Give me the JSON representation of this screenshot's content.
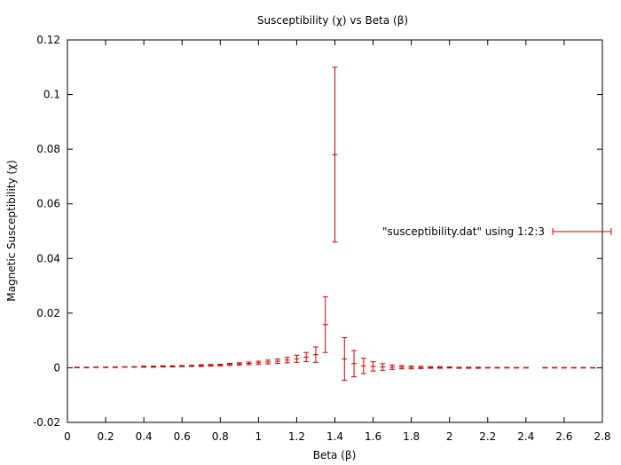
{
  "chart_data": {
    "type": "scatter",
    "title": "Susceptibility (χ) vs Beta (β)",
    "xlabel": "Beta (β)",
    "ylabel": "Magnetic Susceptibility (χ)",
    "xlim": [
      0,
      2.8
    ],
    "ylim": [
      -0.02,
      0.12
    ],
    "xticks": [
      "0",
      "0.2",
      "0.4",
      "0.6",
      "0.8",
      "1",
      "1.2",
      "1.4",
      "1.6",
      "1.8",
      "2",
      "2.2",
      "2.4",
      "2.6",
      "2.8"
    ],
    "yticks": [
      "-0.02",
      "0",
      "0.02",
      "0.04",
      "0.06",
      "0.08",
      "0.1",
      "0.12"
    ],
    "grid": false,
    "legend_position": "right",
    "color": "#cc0000",
    "series": [
      {
        "name": "\"susceptibility.dat\" using 1:2:3",
        "style": "yerrorbars",
        "x": [
          0.05,
          0.1,
          0.15,
          0.2,
          0.25,
          0.3,
          0.35,
          0.4,
          0.45,
          0.5,
          0.55,
          0.6,
          0.65,
          0.7,
          0.75,
          0.8,
          0.85,
          0.9,
          0.95,
          1.0,
          1.05,
          1.1,
          1.15,
          1.2,
          1.25,
          1.3,
          1.35,
          1.4,
          1.45,
          1.5,
          1.55,
          1.6,
          1.65,
          1.7,
          1.75,
          1.8,
          1.85,
          1.9,
          1.95,
          2.0,
          2.05,
          2.1,
          2.15,
          2.2,
          2.25,
          2.3,
          2.35,
          2.4,
          2.5,
          2.55,
          2.6,
          2.65,
          2.7,
          2.75
        ],
        "y": [
          0.0001,
          0.0001,
          0.0002,
          0.0002,
          0.0002,
          0.0003,
          0.0003,
          0.0004,
          0.0004,
          0.0005,
          0.0005,
          0.0006,
          0.0007,
          0.0008,
          0.0009,
          0.001,
          0.0012,
          0.0014,
          0.0016,
          0.0018,
          0.0021,
          0.0024,
          0.0028,
          0.0033,
          0.0039,
          0.0048,
          0.0158,
          0.078,
          0.0032,
          0.0015,
          0.0007,
          0.0005,
          0.0003,
          0.0002,
          0.0002,
          0.0001,
          0.0001,
          0.0001,
          0.0001,
          0.0001,
          0.0,
          0.0,
          0.0,
          0.0,
          0.0,
          0.0,
          0.0,
          0.0,
          0.0,
          0.0,
          0.0,
          0.0,
          0.0,
          0.0
        ],
        "yerr": [
          0.0001,
          0.0001,
          0.0001,
          0.0001,
          0.0001,
          0.0001,
          0.0001,
          0.0002,
          0.0002,
          0.0002,
          0.0002,
          0.0002,
          0.0002,
          0.0003,
          0.0003,
          0.0003,
          0.0004,
          0.0004,
          0.0005,
          0.0006,
          0.0007,
          0.0008,
          0.001,
          0.0013,
          0.0017,
          0.0028,
          0.0102,
          0.032,
          0.0078,
          0.0048,
          0.0028,
          0.0017,
          0.0012,
          0.0008,
          0.0006,
          0.0005,
          0.0004,
          0.0003,
          0.0003,
          0.0002,
          0.0002,
          0.0002,
          0.0002,
          0.0001,
          0.0001,
          0.0001,
          0.0001,
          0.0001,
          0.0001,
          0.0001,
          0.0001,
          0.0001,
          0.0001,
          0.0001
        ]
      }
    ]
  }
}
